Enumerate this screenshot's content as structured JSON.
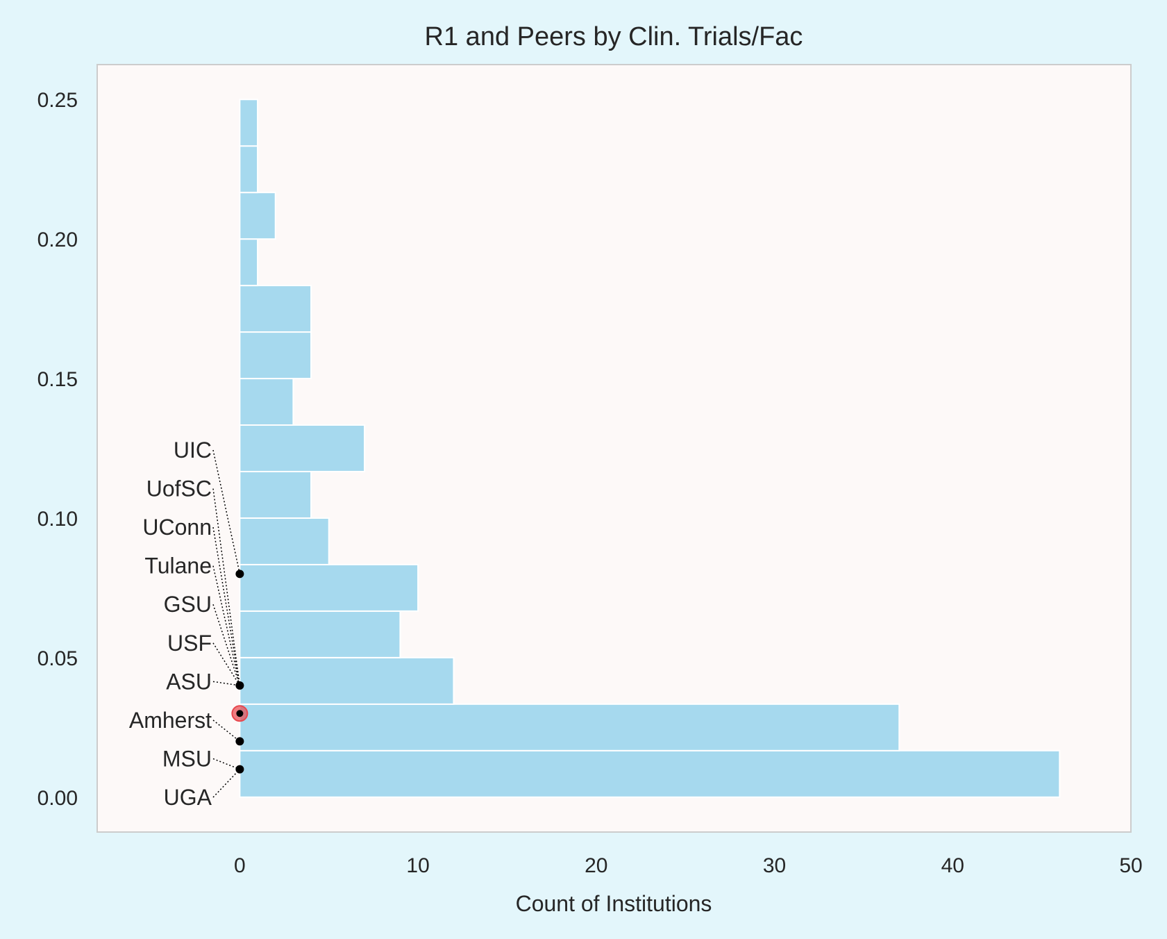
{
  "chart_data": {
    "type": "bar",
    "orientation": "horizontal",
    "title": "R1 and Peers by Clin. Trials/Fac",
    "xlabel": "Count of Institutions",
    "ylabel": "",
    "xlim": [
      -8,
      50
    ],
    "ylim": [
      -0.0125,
      0.2625
    ],
    "x_ticks": [
      "0",
      "10",
      "20",
      "30",
      "40",
      "50"
    ],
    "y_ticks": [
      "0.00",
      "0.05",
      "0.10",
      "0.15",
      "0.20",
      "0.25"
    ],
    "bin_width": 0.01667,
    "bins": [
      {
        "start": 0.0,
        "count": 46
      },
      {
        "start": 0.01667,
        "count": 37
      },
      {
        "start": 0.03333,
        "count": 12
      },
      {
        "start": 0.05,
        "count": 9
      },
      {
        "start": 0.06667,
        "count": 10
      },
      {
        "start": 0.08333,
        "count": 5
      },
      {
        "start": 0.1,
        "count": 4
      },
      {
        "start": 0.11667,
        "count": 7
      },
      {
        "start": 0.13333,
        "count": 3
      },
      {
        "start": 0.15,
        "count": 4
      },
      {
        "start": 0.16667,
        "count": 4
      },
      {
        "start": 0.18333,
        "count": 1
      },
      {
        "start": 0.2,
        "count": 2
      },
      {
        "start": 0.21667,
        "count": 1
      },
      {
        "start": 0.23333,
        "count": 1
      }
    ],
    "institutions": [
      {
        "name": "UIC",
        "value": 0.08
      },
      {
        "name": "UofSC",
        "value": 0.04
      },
      {
        "name": "UConn",
        "value": 0.04
      },
      {
        "name": "Tulane",
        "value": 0.04
      },
      {
        "name": "GSU",
        "value": 0.04
      },
      {
        "name": "USF",
        "value": 0.04
      },
      {
        "name": "ASU",
        "value": 0.04
      },
      {
        "name": "Amherst",
        "value": 0.02
      },
      {
        "name": "MSU",
        "value": 0.01
      },
      {
        "name": "UGA",
        "value": 0.01
      }
    ],
    "highlight": {
      "value": 0.03
    },
    "colors": {
      "background": "#e3f6fb",
      "plot_background": "#fdf9f8",
      "bar": "#a6d9ee",
      "bar_edge": "#ffffff",
      "highlight": "#e8484e",
      "frame": "#cccccc"
    }
  }
}
